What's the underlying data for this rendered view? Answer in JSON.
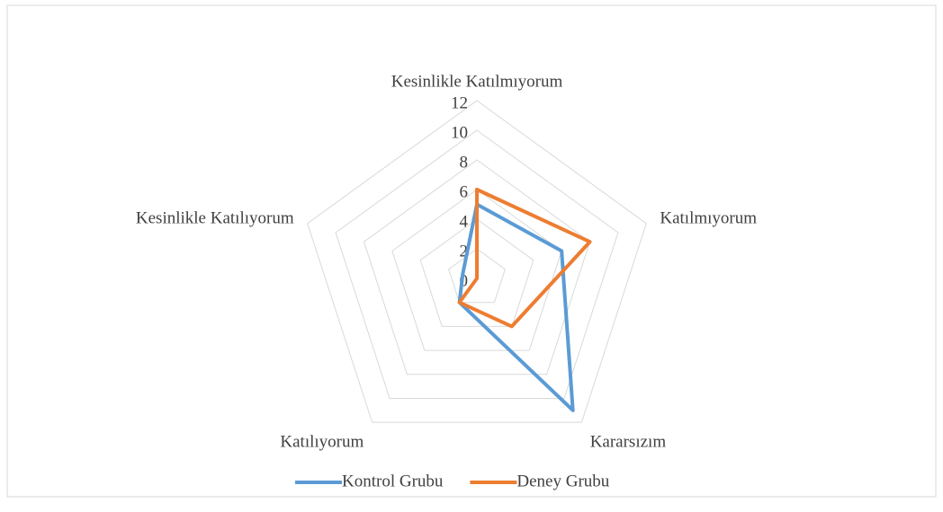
{
  "chart_data": {
    "type": "radar",
    "categories": [
      "Kesinlikle Katılmıyorum",
      "Katılmıyorum",
      "Kararsızım",
      "Katılıyorum",
      "Kesinlikle Katılıyorum"
    ],
    "series": [
      {
        "name": "Kontrol Grubu",
        "color": "#5b9bd5",
        "values": [
          5,
          6,
          11,
          2,
          1
        ]
      },
      {
        "name": "Deney Grubu",
        "color": "#ed7d31",
        "values": [
          6,
          8,
          4,
          2,
          0
        ]
      }
    ],
    "ylim": [
      0,
      12
    ],
    "yticks": [
      0,
      2,
      4,
      6,
      8,
      10,
      12
    ],
    "grid": true,
    "legend": "bottom"
  }
}
